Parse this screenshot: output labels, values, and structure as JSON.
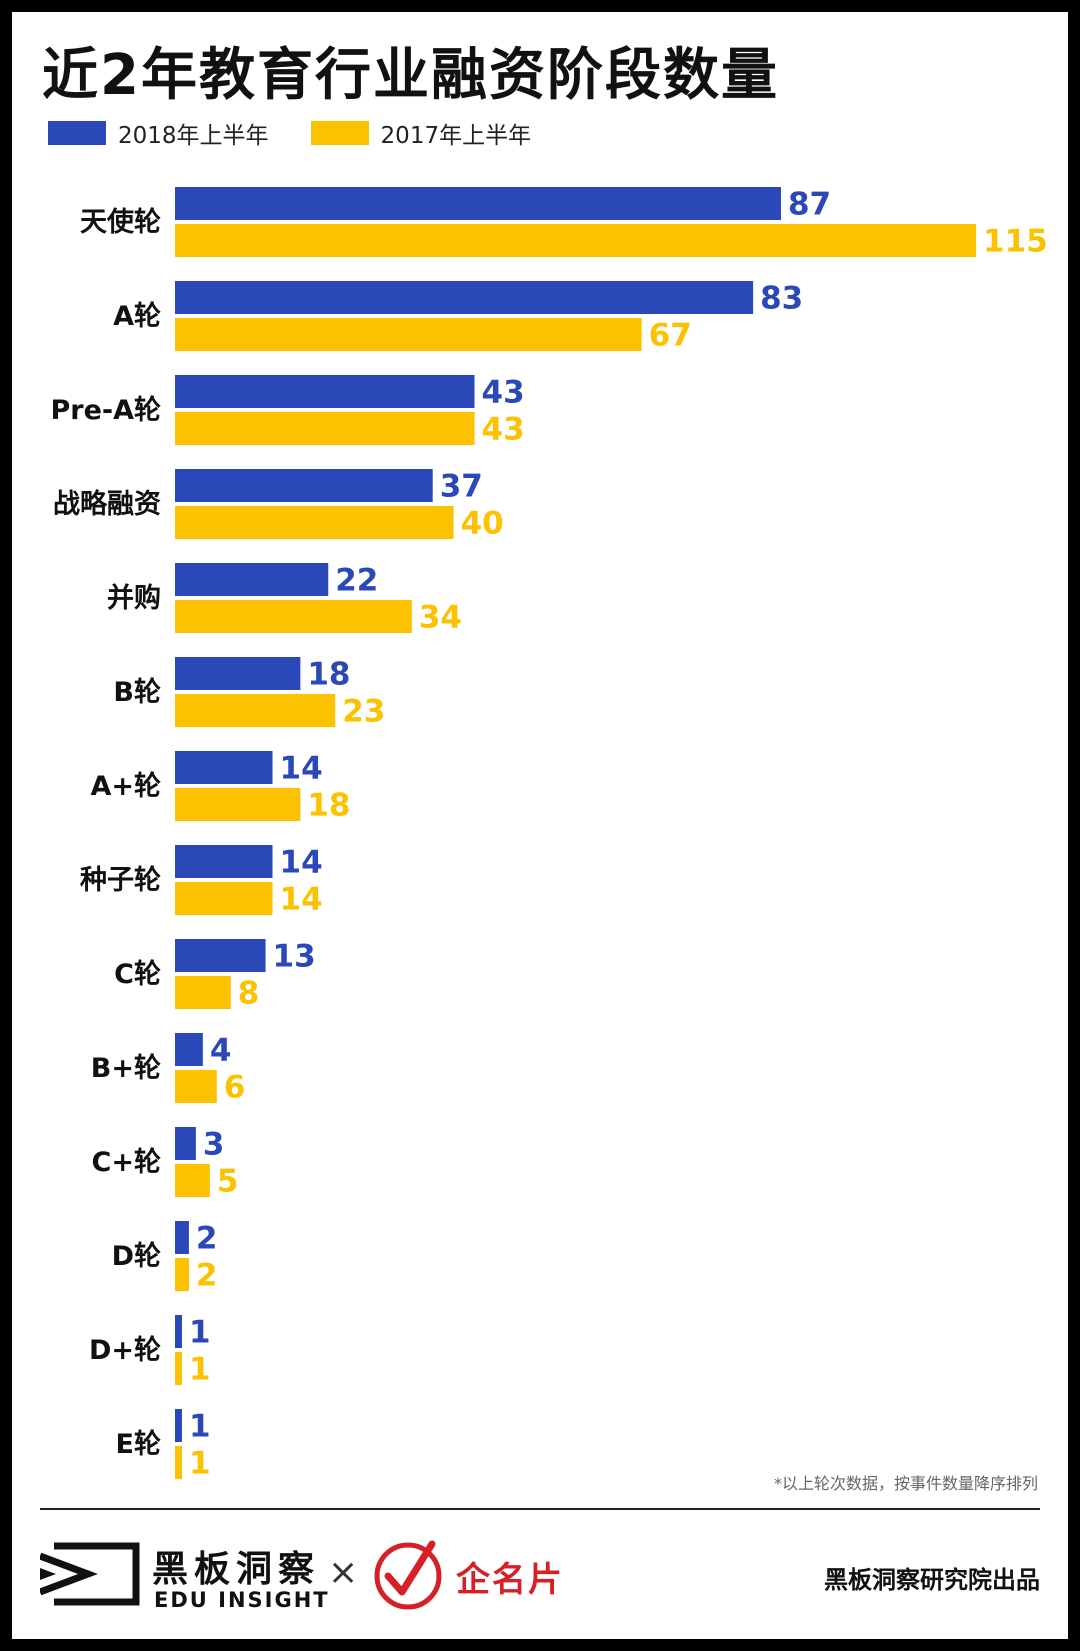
{
  "title": "近2年教育行业融资阶段数量",
  "legend": [
    {
      "label": "2018年上半年",
      "color": "#2b48b8"
    },
    {
      "label": "2017年上半年",
      "color": "#fcc200"
    }
  ],
  "chart_data": {
    "type": "bar",
    "orientation": "horizontal",
    "title": "近2年教育行业融资阶段数量",
    "categories": [
      "天使轮",
      "A轮",
      "Pre-A轮",
      "战略融资",
      "并购",
      "B轮",
      "A+轮",
      "种子轮",
      "C轮",
      "B+轮",
      "C+轮",
      "D轮",
      "D+轮",
      "E轮"
    ],
    "series": [
      {
        "name": "2018年上半年",
        "color": "#2b48b8",
        "values": [
          87,
          83,
          43,
          37,
          22,
          18,
          14,
          14,
          13,
          4,
          3,
          2,
          1,
          1
        ]
      },
      {
        "name": "2017年上半年",
        "color": "#fcc200",
        "values": [
          115,
          67,
          43,
          40,
          34,
          23,
          18,
          14,
          8,
          6,
          5,
          2,
          1,
          1
        ]
      }
    ],
    "xlim": [
      0,
      115
    ],
    "grid": false,
    "legend_position": "top-left",
    "data_labels": true
  },
  "footnote": "*以上轮次数据，按事件数量降序排列",
  "footer": {
    "brand_cn": "黑板洞察",
    "brand_en": "EDU INSIGHT",
    "times": "×",
    "partner": "企名片",
    "producer": "黑板洞察研究院出品"
  }
}
